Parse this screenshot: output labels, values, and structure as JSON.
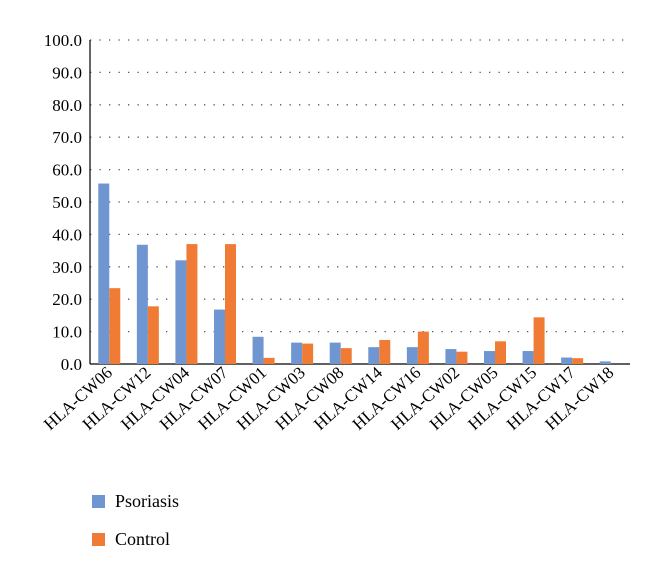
{
  "colors": {
    "psoriasis": "#6f96d1",
    "control": "#ef7b35"
  },
  "chart_data": {
    "type": "bar",
    "categories": [
      "HLA-CW06",
      "HLA-CW12",
      "HLA-CW04",
      "HLA-CW07",
      "HLA-CW01",
      "HLA-CW03",
      "HLA-CW08",
      "HLA-CW14",
      "HLA-CW16",
      "HLA-CW02",
      "HLA-CW05",
      "HLA-CW15",
      "HLA-CW17",
      "HLA-CW18"
    ],
    "series": [
      {
        "name": "Psoriasis",
        "values": [
          55.7,
          36.8,
          32.0,
          16.8,
          8.4,
          6.6,
          6.6,
          5.2,
          5.2,
          4.6,
          4.0,
          4.0,
          2.0,
          0.8
        ]
      },
      {
        "name": "Control",
        "values": [
          23.4,
          17.8,
          37.0,
          37.0,
          1.9,
          6.3,
          4.9,
          7.4,
          10.0,
          3.8,
          7.0,
          14.4,
          1.8,
          0.0
        ]
      }
    ],
    "ylim": [
      0,
      100
    ],
    "yticks": [
      "0.0",
      "10.0",
      "20.0",
      "30.0",
      "40.0",
      "50.0",
      "60.0",
      "70.0",
      "80.0",
      "90.0",
      "100.0"
    ],
    "grid": "dotted horizontal",
    "legend": "bottom-left"
  }
}
